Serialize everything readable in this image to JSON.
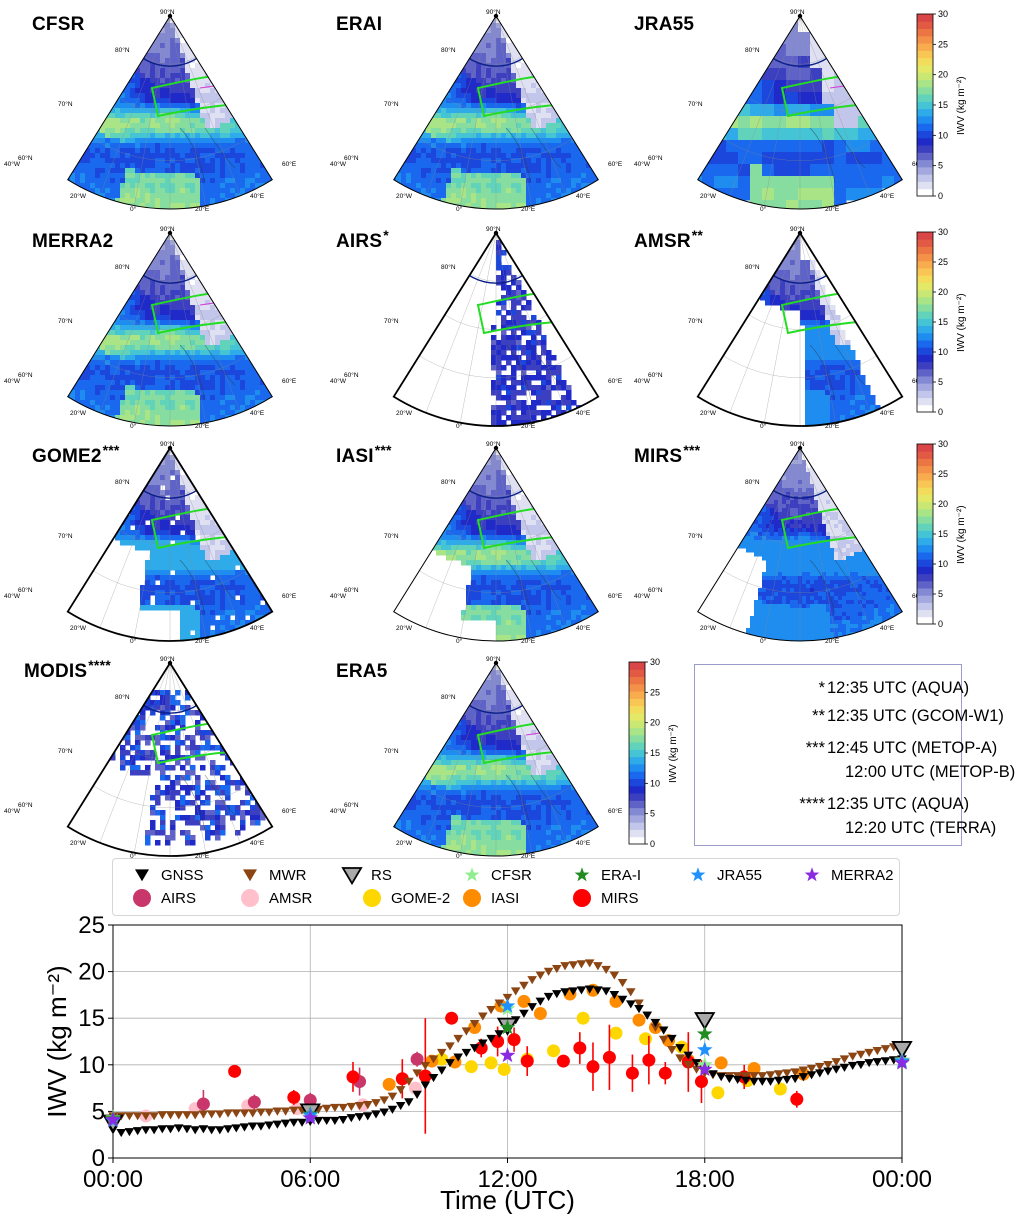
{
  "panels": [
    {
      "key": "cfsr",
      "title": "CFSR",
      "sup": "",
      "style": "full",
      "box": true
    },
    {
      "key": "erai",
      "title": "ERAI",
      "sup": "",
      "style": "full",
      "box": false
    },
    {
      "key": "jra55",
      "title": "JRA55",
      "sup": "",
      "style": "blocky",
      "box": true
    },
    {
      "key": "merra2",
      "title": "MERRA2",
      "sup": "",
      "style": "full",
      "box": true
    },
    {
      "key": "airs",
      "title": "AIRS",
      "sup": "*",
      "style": "airs",
      "box": false
    },
    {
      "key": "amsr",
      "title": "AMSR",
      "sup": "**",
      "style": "amsr",
      "box": false
    },
    {
      "key": "gome2",
      "title": "GOME2",
      "sup": "***",
      "style": "gome",
      "box": false
    },
    {
      "key": "iasi",
      "title": "IASI",
      "sup": "***",
      "style": "iasi",
      "box": false
    },
    {
      "key": "mirs",
      "title": "MIRS",
      "sup": "***",
      "style": "mirs",
      "box": false
    },
    {
      "key": "modis",
      "title": "MODIS",
      "sup": "****",
      "style": "modis",
      "box": false
    },
    {
      "key": "era5",
      "title": "ERA5",
      "sup": "",
      "style": "full",
      "box": true
    }
  ],
  "map_labels": {
    "lat": [
      "90°N",
      "80°N",
      "70°N",
      "60°N"
    ],
    "lon": [
      "40°W",
      "20°W",
      "0°",
      "20°E",
      "40°E",
      "60°E"
    ]
  },
  "colorbar": {
    "label": "IWV (kg m⁻²)",
    "ticks": [
      "0",
      "5",
      "10",
      "15",
      "20",
      "25",
      "30"
    ],
    "colors": [
      "#ffffff",
      "#dfe1f3",
      "#c2c6ea",
      "#a3a9df",
      "#8489d3",
      "#5f63c7",
      "#3b3fc0",
      "#1f2ac8",
      "#1b47dc",
      "#1968ee",
      "#1f8cf0",
      "#2eabe8",
      "#45c4d6",
      "#62d3bb",
      "#86dd9f",
      "#a9e486",
      "#c9e873",
      "#e3e966",
      "#f3dc5c",
      "#f9c655",
      "#f9ac4e",
      "#f49148",
      "#ec7544",
      "#e35a44",
      "#da4547"
    ]
  },
  "notes": [
    {
      "mark": "*",
      "text": "12:35 UTC (AQUA)"
    },
    {
      "mark": "**",
      "text": "12:35 UTC (GCOM-W1)"
    },
    {
      "mark": "***",
      "text": "12:45 UTC (METOP-A)"
    },
    {
      "mark": "",
      "text": "12:00 UTC (METOP-B)"
    },
    {
      "mark": "****",
      "text": "12:35 UTC (AQUA)"
    },
    {
      "mark": "",
      "text": "12:20 UTC (TERRA)"
    }
  ],
  "legend": [
    {
      "label": "GNSS",
      "marker": "tri_down",
      "color": "#000000"
    },
    {
      "label": "MWR",
      "marker": "tri_down",
      "color": "#8b4513"
    },
    {
      "label": "RS",
      "marker": "tri_big",
      "color": "#a9a9a9"
    },
    {
      "label": "CFSR",
      "marker": "star",
      "color": "#90ee90"
    },
    {
      "label": "ERA-I",
      "marker": "star",
      "color": "#228b22"
    },
    {
      "label": "JRA55",
      "marker": "star",
      "color": "#1e90ff"
    },
    {
      "label": "MERRA2",
      "marker": "star",
      "color": "#8a2be2"
    },
    {
      "label": "AIRS",
      "marker": "circle",
      "color": "#c9376a"
    },
    {
      "label": "AMSR",
      "marker": "circle",
      "color": "#ffc0cb"
    },
    {
      "label": "GOME-2",
      "marker": "circle",
      "color": "#ffd700"
    },
    {
      "label": "IASI",
      "marker": "circle",
      "color": "#ff8c00"
    },
    {
      "label": "MIRS",
      "marker": "circle",
      "color": "#ff0000"
    }
  ],
  "chart_data": {
    "type": "scatter",
    "xlabel": "Time (UTC)",
    "ylabel": "IWV (kg m⁻²)",
    "xlim": [
      0,
      24
    ],
    "ylim": [
      0,
      25
    ],
    "xticks": [
      "00:00",
      "06:00",
      "12:00",
      "18:00",
      "00:00"
    ],
    "yticks": [
      "0",
      "5",
      "10",
      "15",
      "20",
      "25"
    ],
    "grid": true,
    "legend_position": "top",
    "series": [
      {
        "name": "GNSS",
        "marker": "tri_down",
        "color": "#000000",
        "x": [
          0,
          0.25,
          0.5,
          0.75,
          1,
          1.25,
          1.5,
          1.75,
          2,
          2.25,
          2.5,
          2.75,
          3,
          3.25,
          3.5,
          3.75,
          4,
          4.25,
          4.5,
          4.75,
          5,
          5.25,
          5.5,
          5.75,
          6,
          6.25,
          6.5,
          6.75,
          7,
          7.25,
          7.5,
          7.75,
          8,
          8.25,
          8.5,
          8.75,
          9,
          9.25,
          9.5,
          9.75,
          10,
          10.25,
          10.5,
          10.75,
          11,
          11.25,
          11.5,
          11.75,
          12,
          12.25,
          12.5,
          12.75,
          13,
          13.25,
          13.5,
          13.75,
          14,
          14.25,
          14.5,
          14.75,
          15,
          15.25,
          15.5,
          15.75,
          16,
          16.25,
          16.5,
          16.75,
          17,
          17.25,
          17.5,
          17.75,
          18,
          18.25,
          18.5,
          18.75,
          19,
          19.25,
          19.5,
          19.75,
          20,
          20.25,
          20.5,
          20.75,
          21,
          21.25,
          21.5,
          21.75,
          22,
          22.25,
          22.5,
          22.75,
          23,
          23.25,
          23.5,
          23.75,
          24
        ],
        "y": [
          3.0,
          2.7,
          2.8,
          2.9,
          3.0,
          3.0,
          3.1,
          3.1,
          3.2,
          3.1,
          3.0,
          3.1,
          3.0,
          3.0,
          3.1,
          3.2,
          3.3,
          3.4,
          3.4,
          3.5,
          3.6,
          3.7,
          3.8,
          3.8,
          3.9,
          4.0,
          4.0,
          4.0,
          4.1,
          4.3,
          4.4,
          4.5,
          4.7,
          4.9,
          5.2,
          5.6,
          6.0,
          6.8,
          7.8,
          8.6,
          9.4,
          10.2,
          10.8,
          11.3,
          11.8,
          12.3,
          12.8,
          13.3,
          14.0,
          14.8,
          15.5,
          16.2,
          16.8,
          17.3,
          17.6,
          17.8,
          17.9,
          18.0,
          18.1,
          18.0,
          17.9,
          17.5,
          17.0,
          16.5,
          16.0,
          15.3,
          14.5,
          13.7,
          12.8,
          11.8,
          11.0,
          10.2,
          9.5,
          9.0,
          8.7,
          8.5,
          8.4,
          8.3,
          8.2,
          8.2,
          8.2,
          8.3,
          8.4,
          8.5,
          8.7,
          8.9,
          9.1,
          9.3,
          9.5,
          9.7,
          9.9,
          10.0,
          10.2,
          10.3,
          10.4,
          10.5,
          10.6
        ]
      },
      {
        "name": "MWR",
        "marker": "tri_down",
        "color": "#8b4513",
        "x": [
          0,
          0.25,
          0.5,
          0.75,
          1,
          1.25,
          1.5,
          1.75,
          2,
          2.25,
          2.5,
          2.75,
          3,
          3.25,
          3.5,
          3.75,
          4,
          4.25,
          4.5,
          4.75,
          5,
          5.25,
          5.5,
          5.75,
          6,
          6.25,
          6.5,
          6.75,
          7,
          7.25,
          7.5,
          7.75,
          8,
          8.25,
          8.5,
          8.75,
          9,
          9.25,
          9.5,
          9.75,
          10,
          10.25,
          10.5,
          10.75,
          11,
          11.25,
          11.5,
          11.75,
          12,
          12.25,
          12.5,
          12.75,
          13,
          13.25,
          13.5,
          13.75,
          14,
          14.25,
          14.5,
          14.75,
          15,
          15.25,
          15.5,
          15.75,
          16,
          16.25,
          16.5,
          16.75,
          17,
          17.25,
          17.5,
          17.75,
          18,
          18.25,
          18.5,
          18.75,
          19,
          19.25,
          19.5,
          19.75,
          20,
          20.25,
          20.5,
          20.75,
          21,
          21.25,
          21.5,
          21.75,
          22,
          22.25,
          22.5,
          22.75,
          23,
          23.25,
          23.5,
          23.75,
          24
        ],
        "y": [
          4.5,
          4.5,
          4.5,
          4.5,
          4.5,
          4.5,
          4.6,
          4.6,
          4.6,
          4.6,
          4.6,
          4.7,
          4.7,
          4.7,
          4.8,
          4.8,
          4.8,
          4.8,
          4.9,
          4.9,
          5.0,
          5.0,
          5.1,
          5.1,
          5.2,
          5.2,
          5.3,
          5.4,
          5.4,
          5.5,
          5.6,
          5.7,
          5.9,
          6.2,
          6.6,
          7.3,
          8.2,
          9.1,
          9.9,
          10.6,
          11.3,
          12.0,
          12.8,
          13.6,
          14.4,
          15.2,
          15.9,
          16.6,
          17.2,
          17.9,
          18.5,
          19.1,
          19.6,
          20.0,
          20.3,
          20.6,
          20.7,
          20.8,
          20.9,
          20.6,
          20.2,
          19.6,
          18.8,
          17.8,
          16.6,
          15.3,
          14.0,
          12.7,
          11.6,
          10.7,
          10.0,
          9.5,
          9.1,
          8.9,
          8.8,
          8.8,
          8.8,
          8.8,
          8.8,
          8.8,
          8.9,
          9.0,
          9.1,
          9.2,
          9.4,
          9.6,
          9.8,
          10.0,
          10.3,
          10.6,
          10.9,
          11.1,
          11.3,
          11.5,
          11.7,
          11.9,
          12.0
        ]
      },
      {
        "name": "RS",
        "marker": "tri_big",
        "color": "#a9a9a9",
        "x": [
          0,
          6,
          12,
          18,
          24
        ],
        "y": [
          3.8,
          5.0,
          14.2,
          14.8,
          11.7
        ]
      },
      {
        "name": "CFSR",
        "marker": "star",
        "color": "#90ee90",
        "x": [
          0,
          6,
          12,
          18,
          24
        ],
        "y": [
          4.3,
          4.5,
          16.0,
          10.0,
          10.5
        ]
      },
      {
        "name": "ERA-I",
        "marker": "star",
        "color": "#228b22",
        "x": [
          0,
          6,
          12,
          18,
          24
        ],
        "y": [
          4.2,
          4.7,
          14.0,
          13.3,
          10.3
        ]
      },
      {
        "name": "JRA55",
        "marker": "star",
        "color": "#1e90ff",
        "x": [
          0,
          6,
          12,
          18,
          24
        ],
        "y": [
          4.0,
          4.6,
          16.3,
          11.6,
          10.4
        ]
      },
      {
        "name": "MERRA2",
        "marker": "star",
        "color": "#8a2be2",
        "x": [
          0,
          6,
          12,
          18,
          24
        ],
        "y": [
          4.1,
          4.3,
          11.0,
          9.5,
          10.2
        ]
      },
      {
        "name": "AIRS",
        "marker": "circle",
        "color": "#c9376a",
        "x": [
          2.75,
          4.3,
          6,
          7.5,
          9.25
        ],
        "y": [
          5.8,
          6.0,
          6.2,
          8.2,
          10.6
        ],
        "err": [
          1.5,
          0.8,
          0.8,
          1.5,
          0.8
        ]
      },
      {
        "name": "AMSR",
        "marker": "circle",
        "color": "#ffc0cb",
        "x": [
          0,
          1.0,
          2.5,
          4.1,
          5.6,
          7.6,
          9.2
        ],
        "y": [
          4.0,
          4.5,
          5.3,
          5.6,
          5.3,
          5.7,
          7.5
        ],
        "err": [
          0,
          0,
          0,
          0,
          0,
          0,
          0
        ]
      },
      {
        "name": "GOME-2",
        "marker": "circle",
        "color": "#ffd700",
        "x": [
          10.0,
          10.9,
          11.5,
          11.9,
          12.6,
          13.4,
          14.3,
          15.3,
          16.2,
          17.3,
          18.4,
          19.3,
          20.3
        ],
        "y": [
          10.6,
          9.8,
          10.2,
          9.5,
          10.6,
          11.5,
          15.0,
          13.4,
          12.8,
          11.9,
          7.0,
          8.3,
          7.4
        ],
        "err": [
          0.6,
          0.6,
          0.5,
          0.6,
          0.5,
          0.6,
          0.5,
          0.6,
          0.6,
          0.6,
          0.6,
          0.6,
          0.6
        ]
      },
      {
        "name": "IASI",
        "marker": "circle",
        "color": "#ff8c00",
        "x": [
          8.4,
          9.7,
          10.4,
          11.0,
          11.8,
          12.5,
          13.0,
          13.9,
          14.6,
          15.3,
          16.0,
          16.5,
          16.9,
          17.5,
          18.5,
          19.5,
          21.0
        ],
        "y": [
          7.9,
          10.4,
          10.3,
          14.0,
          16.3,
          16.8,
          15.5,
          17.6,
          18.0,
          16.8,
          14.8,
          14.0,
          12.6,
          10.5,
          10.2,
          9.6,
          9.0
        ],
        "err": [
          0.6,
          0.6,
          0.6,
          0.6,
          0.5,
          0.6,
          0.6,
          0.6,
          0.6,
          0.6,
          0.6,
          0.6,
          0.6,
          0.6,
          0.6,
          0.6,
          0.6
        ]
      },
      {
        "name": "MIRS",
        "marker": "circle",
        "color": "#ff0000",
        "x": [
          3.7,
          5.5,
          7.3,
          8.8,
          9.5,
          10.3,
          11.2,
          11.7,
          12.2,
          12.6,
          13.7,
          14.2,
          14.6,
          15.1,
          15.8,
          16.3,
          16.8,
          17.5,
          17.9,
          19.2,
          20.8
        ],
        "y": [
          9.3,
          6.5,
          8.7,
          8.5,
          8.8,
          15.0,
          11.8,
          12.5,
          12.7,
          10.4,
          10.4,
          11.8,
          9.8,
          10.8,
          9.1,
          10.5,
          9.1,
          10.3,
          8.2,
          8.7,
          6.3
        ],
        "err": [
          0.5,
          0.8,
          1.6,
          2.1,
          6.2,
          0.5,
          1.0,
          1.6,
          1.3,
          1.6,
          0.6,
          1.7,
          2.6,
          3.5,
          2.0,
          2.6,
          1.2,
          3.2,
          2.3,
          1.3,
          0.9
        ]
      }
    ]
  }
}
